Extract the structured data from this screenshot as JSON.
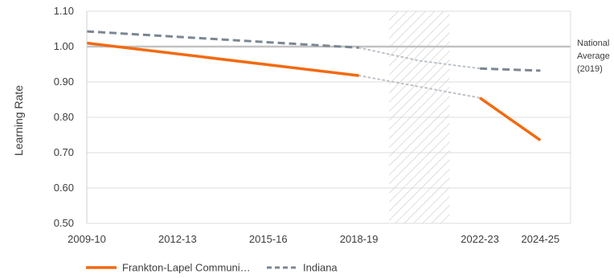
{
  "chart_data": {
    "type": "line",
    "title": "",
    "xlabel": "",
    "ylabel": "Learning Rate",
    "ylim": [
      0.5,
      1.1
    ],
    "yticks": [
      "0.50",
      "0.60",
      "0.70",
      "0.80",
      "0.90",
      "1.00",
      "1.10"
    ],
    "xlim": [
      2009,
      2025
    ],
    "xticks": [
      {
        "label": "2009-10",
        "x": 2009
      },
      {
        "label": "2012-13",
        "x": 2012
      },
      {
        "label": "2015-16",
        "x": 2015
      },
      {
        "label": "2018-19",
        "x": 2018
      },
      {
        "label": "2022-23",
        "x": 2022
      },
      {
        "label": "2024-25",
        "x": 2024
      }
    ],
    "grid": "horizontal",
    "shaded_period": {
      "x_start": 2019,
      "x_end": 2021,
      "pattern": "diagonal-hatch"
    },
    "reference_line": {
      "value": 1.0,
      "label_lines": [
        "National",
        "Average",
        "(2019)"
      ]
    },
    "series": [
      {
        "name": "Frankton-Lapel Communi…",
        "color": "#f26a10",
        "style": "solid",
        "segments": [
          {
            "x": [
              2009,
              2018
            ],
            "y": [
              1.01,
              0.918
            ]
          },
          {
            "x": [
              2022,
              2024
            ],
            "y": [
              0.855,
              0.735
            ]
          }
        ],
        "bridge": {
          "x": [
            2018,
            2022
          ],
          "y": [
            0.918,
            0.855
          ]
        }
      },
      {
        "name": "Indiana",
        "color": "#7b8794",
        "style": "dashed",
        "segments": [
          {
            "x": [
              2009,
              2018
            ],
            "y": [
              1.043,
              0.997
            ]
          },
          {
            "x": [
              2022,
              2024
            ],
            "y": [
              0.938,
              0.932
            ]
          }
        ],
        "bridge": {
          "x": [
            2018,
            2020,
            2022
          ],
          "y": [
            0.997,
            0.96,
            0.938
          ]
        }
      }
    ],
    "legend": {
      "placement": "bottom-left"
    }
  }
}
